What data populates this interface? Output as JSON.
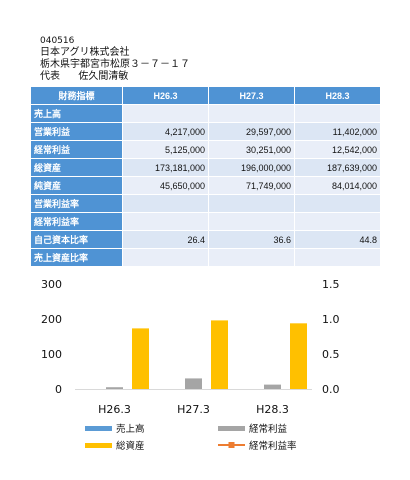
{
  "company": {
    "code": "040516",
    "name": "日本アグリ株式会社",
    "address": "栃木県宇都宮市松原３－７－１７",
    "rep_label": "代表",
    "rep_name": "佐久間清敏"
  },
  "table": {
    "header": "財務指標",
    "columns": [
      "H26.3",
      "H27.3",
      "H28.3"
    ],
    "rows": [
      {
        "label": "売上高",
        "values": [
          "",
          "",
          ""
        ]
      },
      {
        "label": "営業利益",
        "values": [
          "4,217,000",
          "29,597,000",
          "11,402,000"
        ]
      },
      {
        "label": "経常利益",
        "values": [
          "5,125,000",
          "30,251,000",
          "12,542,000"
        ]
      },
      {
        "label": "総資産",
        "values": [
          "173,181,000",
          "196,000,000",
          "187,639,000"
        ]
      },
      {
        "label": "純資産",
        "values": [
          "45,650,000",
          "71,749,000",
          "84,014,000"
        ]
      },
      {
        "label": "営業利益率",
        "values": [
          "",
          "",
          ""
        ]
      },
      {
        "label": "経常利益率",
        "values": [
          "",
          "",
          ""
        ]
      },
      {
        "label": "自己資本比率",
        "values": [
          "26.4",
          "36.6",
          "44.8"
        ]
      },
      {
        "label": "売上資産比率",
        "values": [
          "",
          "",
          ""
        ]
      }
    ]
  },
  "chart_data": {
    "type": "bar",
    "categories": [
      "H26.3",
      "H27.3",
      "H28.3"
    ],
    "series": [
      {
        "name": "売上高",
        "type": "bar",
        "color": "#5b9bd5",
        "values": [
          0,
          0,
          0
        ]
      },
      {
        "name": "経常利益",
        "type": "bar",
        "color": "#a5a5a5",
        "values": [
          5.125,
          30.251,
          12.542
        ]
      },
      {
        "name": "総資産",
        "type": "bar",
        "color": "#ffc000",
        "values": [
          173.181,
          196.0,
          187.639
        ]
      },
      {
        "name": "経常利益率",
        "type": "line",
        "axis": "right",
        "color": "#ed7d31",
        "values": [
          null,
          null,
          null
        ]
      }
    ],
    "y_left_ticks": [
      "300",
      "200",
      "100",
      "0"
    ],
    "y_right_ticks": [
      "1.5",
      "1.0",
      "0.5",
      "0.0"
    ],
    "ylim": [
      0,
      300
    ],
    "ylim_right": [
      0,
      1.5
    ],
    "grid": false,
    "legend_position": "bottom"
  }
}
